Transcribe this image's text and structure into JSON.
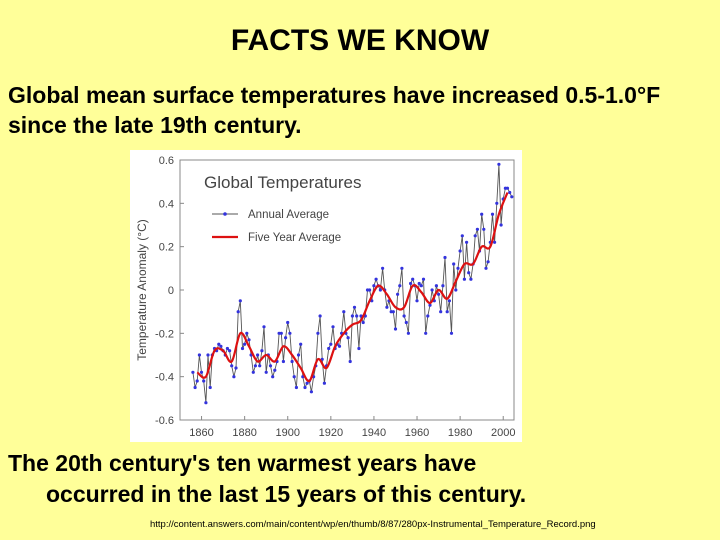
{
  "slide": {
    "title": "FACTS WE KNOW",
    "para1": "Global mean surface temperatures have increased 0.5-1.0°F since the late 19th century.",
    "para2_line1": "The 20th century's ten warmest years have",
    "para2_line2": "occurred in the last 15 years of this century.",
    "source": "http://content.answers.com/main/content/wp/en/thumb/8/87/280px-Instrumental_Temperature_Record.png"
  },
  "colors": {
    "background": "#ffff99",
    "annual": "#3333dd",
    "annual_line": "#555555",
    "five_year": "#dd1111"
  },
  "chart_data": {
    "type": "line",
    "title": "Global Temperatures",
    "xlabel": "",
    "ylabel": "Temperature Anomaly (°C)",
    "xlim": [
      1850,
      2005
    ],
    "ylim": [
      -0.6,
      0.6
    ],
    "xticks": [
      1860,
      1880,
      1900,
      1920,
      1940,
      1960,
      1980,
      2000
    ],
    "yticks": [
      0.6,
      0.4,
      0.2,
      0,
      -0.2,
      -0.4,
      -0.6
    ],
    "ytick_labels": [
      "0.6",
      "0.4",
      "0.2",
      "0",
      "-0.2",
      "-0.4",
      "-0.6"
    ],
    "legend": "top-left",
    "series": [
      {
        "name": "Annual Average",
        "x": [
          1856,
          1857,
          1858,
          1859,
          1860,
          1861,
          1862,
          1863,
          1864,
          1865,
          1866,
          1867,
          1868,
          1869,
          1870,
          1871,
          1872,
          1873,
          1874,
          1875,
          1876,
          1877,
          1878,
          1879,
          1880,
          1881,
          1882,
          1883,
          1884,
          1885,
          1886,
          1887,
          1888,
          1889,
          1890,
          1891,
          1892,
          1893,
          1894,
          1895,
          1896,
          1897,
          1898,
          1899,
          1900,
          1901,
          1902,
          1903,
          1904,
          1905,
          1906,
          1907,
          1908,
          1909,
          1910,
          1911,
          1912,
          1913,
          1914,
          1915,
          1916,
          1917,
          1918,
          1919,
          1920,
          1921,
          1922,
          1923,
          1924,
          1925,
          1926,
          1927,
          1928,
          1929,
          1930,
          1931,
          1932,
          1933,
          1934,
          1935,
          1936,
          1937,
          1938,
          1939,
          1940,
          1941,
          1942,
          1943,
          1944,
          1945,
          1946,
          1947,
          1948,
          1949,
          1950,
          1951,
          1952,
          1953,
          1954,
          1955,
          1956,
          1957,
          1958,
          1959,
          1960,
          1961,
          1962,
          1963,
          1964,
          1965,
          1966,
          1967,
          1968,
          1969,
          1970,
          1971,
          1972,
          1973,
          1974,
          1975,
          1976,
          1977,
          1978,
          1979,
          1980,
          1981,
          1982,
          1983,
          1984,
          1985,
          1986,
          1987,
          1988,
          1989,
          1990,
          1991,
          1992,
          1993,
          1994,
          1995,
          1996,
          1997,
          1998,
          1999,
          2000,
          2001,
          2002,
          2003,
          2004
        ],
        "values": [
          -0.38,
          -0.45,
          -0.42,
          -0.3,
          -0.38,
          -0.42,
          -0.52,
          -0.3,
          -0.45,
          -0.3,
          -0.27,
          -0.28,
          -0.25,
          -0.26,
          -0.28,
          -0.3,
          -0.27,
          -0.28,
          -0.35,
          -0.4,
          -0.36,
          -0.1,
          -0.05,
          -0.27,
          -0.25,
          -0.2,
          -0.23,
          -0.3,
          -0.38,
          -0.35,
          -0.3,
          -0.35,
          -0.28,
          -0.17,
          -0.38,
          -0.3,
          -0.35,
          -0.4,
          -0.37,
          -0.33,
          -0.2,
          -0.2,
          -0.33,
          -0.22,
          -0.15,
          -0.2,
          -0.33,
          -0.4,
          -0.45,
          -0.3,
          -0.25,
          -0.4,
          -0.45,
          -0.43,
          -0.42,
          -0.47,
          -0.4,
          -0.35,
          -0.2,
          -0.12,
          -0.32,
          -0.43,
          -0.35,
          -0.27,
          -0.25,
          -0.17,
          -0.27,
          -0.25,
          -0.26,
          -0.2,
          -0.1,
          -0.2,
          -0.22,
          -0.33,
          -0.12,
          -0.08,
          -0.12,
          -0.27,
          -0.12,
          -0.15,
          -0.12,
          0.0,
          0.0,
          -0.05,
          0.02,
          0.05,
          0.02,
          0.0,
          0.1,
          0.0,
          -0.08,
          -0.05,
          -0.1,
          -0.1,
          -0.18,
          -0.02,
          0.02,
          0.1,
          -0.12,
          -0.15,
          -0.2,
          0.03,
          0.05,
          0.02,
          -0.05,
          0.03,
          0.02,
          0.05,
          -0.2,
          -0.12,
          -0.07,
          0.0,
          -0.05,
          0.02,
          -0.02,
          -0.1,
          0.02,
          0.15,
          -0.1,
          -0.05,
          -0.2,
          0.12,
          0.0,
          0.1,
          0.18,
          0.25,
          0.05,
          0.22,
          0.08,
          0.05,
          0.12,
          0.25,
          0.28,
          0.18,
          0.35,
          0.28,
          0.1,
          0.13,
          0.22,
          0.35,
          0.22,
          0.4,
          0.58,
          0.3,
          0.42,
          0.47,
          0.47,
          0.45,
          0.43
        ]
      },
      {
        "name": "Five Year Average",
        "x": [
          1858,
          1862,
          1866,
          1870,
          1874,
          1878,
          1882,
          1886,
          1890,
          1894,
          1898,
          1902,
          1906,
          1910,
          1914,
          1918,
          1922,
          1926,
          1930,
          1934,
          1938,
          1942,
          1946,
          1950,
          1954,
          1958,
          1962,
          1966,
          1970,
          1974,
          1978,
          1982,
          1986,
          1990,
          1994,
          1998,
          2002
        ],
        "values": [
          -0.38,
          -0.4,
          -0.28,
          -0.28,
          -0.33,
          -0.2,
          -0.26,
          -0.33,
          -0.3,
          -0.33,
          -0.26,
          -0.3,
          -0.36,
          -0.42,
          -0.32,
          -0.36,
          -0.26,
          -0.2,
          -0.16,
          -0.14,
          -0.05,
          0.02,
          -0.02,
          -0.08,
          -0.08,
          0.02,
          -0.01,
          -0.06,
          0.0,
          -0.04,
          0.04,
          0.12,
          0.12,
          0.2,
          0.2,
          0.35,
          0.45
        ]
      }
    ]
  }
}
